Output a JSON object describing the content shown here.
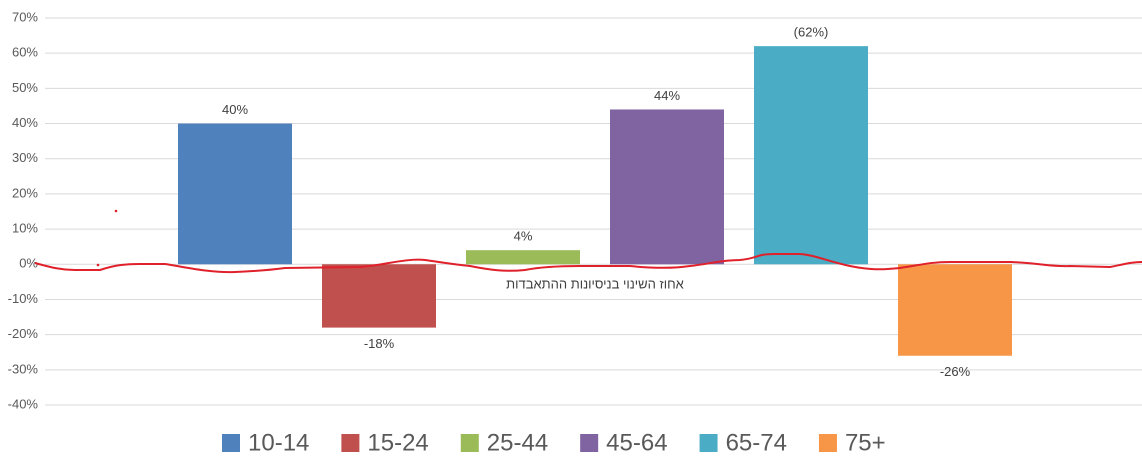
{
  "chart_data": {
    "type": "bar",
    "x_label": "אחוז השינוי בניסיונות ההתאבדות",
    "categories": [
      null
    ],
    "series": [
      {
        "name": "10-14",
        "color": "#4f81bd",
        "values": [
          40
        ],
        "value_labels": [
          "40%"
        ]
      },
      {
        "name": "15-24",
        "color": "#c0504d",
        "values": [
          -18
        ],
        "value_labels": [
          "-18%"
        ]
      },
      {
        "name": "25-44",
        "color": "#9bbb59",
        "values": [
          4
        ],
        "value_labels": [
          "4%"
        ]
      },
      {
        "name": "45-64",
        "color": "#8064a2",
        "values": [
          44
        ],
        "value_labels": [
          "44%"
        ]
      },
      {
        "name": "65-74",
        "color": "#4bacc6",
        "values": [
          62
        ],
        "value_labels": [
          "(62%)"
        ]
      },
      {
        "name": "75+",
        "color": "#f79646",
        "values": [
          -26
        ],
        "value_labels": [
          "-26%"
        ]
      }
    ],
    "ylim": [
      -40,
      70
    ],
    "yticks": [
      {
        "value": -40,
        "label": "-40%"
      },
      {
        "value": -30,
        "label": "-30%"
      },
      {
        "value": -20,
        "label": "-20%"
      },
      {
        "value": -10,
        "label": "-10%"
      },
      {
        "value": 0,
        "label": "0%"
      },
      {
        "value": 10,
        "label": "10%"
      },
      {
        "value": 20,
        "label": "20%"
      },
      {
        "value": 30,
        "label": "30%"
      },
      {
        "value": 40,
        "label": "40%"
      },
      {
        "value": 50,
        "label": "50%"
      },
      {
        "value": 60,
        "label": "60%"
      },
      {
        "value": 70,
        "label": "70%"
      }
    ],
    "grid": true,
    "legend": "bottom"
  }
}
